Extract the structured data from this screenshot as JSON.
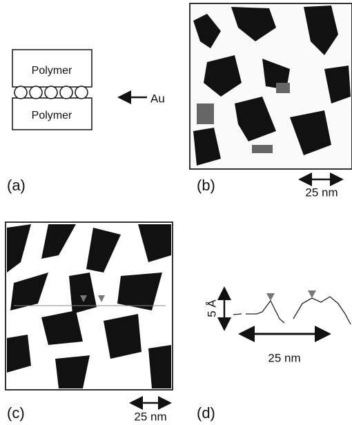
{
  "panels": {
    "a": {
      "label": "(a)",
      "top_layer": "Polymer",
      "bottom_layer": "Polymer",
      "marker": "Au"
    },
    "b": {
      "label": "(b)",
      "scale": "25 nm"
    },
    "c": {
      "label": "(c)",
      "scale": "25 nm"
    },
    "d": {
      "label": "(d)",
      "vertical_scale": "5 Å",
      "horizontal_scale": "25 nm"
    }
  }
}
